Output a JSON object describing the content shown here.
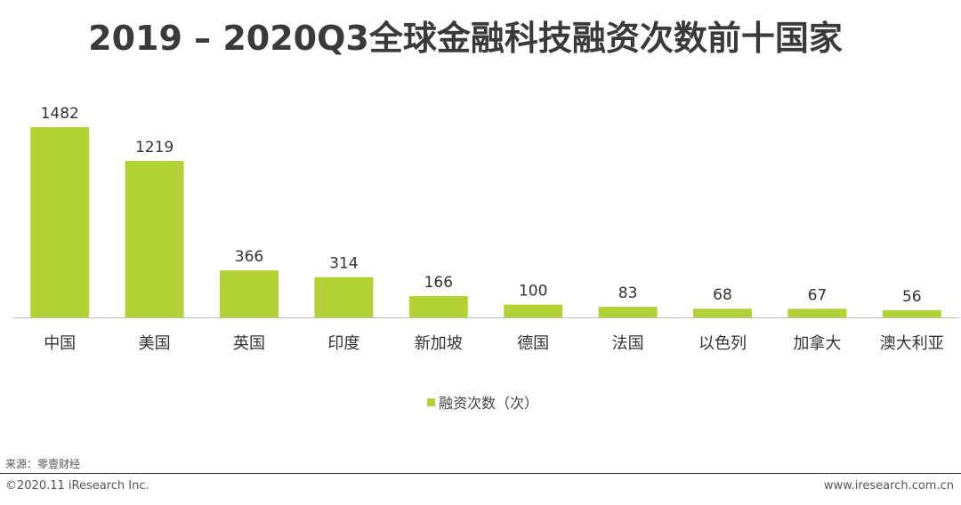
{
  "title": "2019 – 2020Q3全球金融科技融资次数前十国家",
  "chart_data": {
    "type": "bar",
    "categories": [
      "中国",
      "美国",
      "英国",
      "印度",
      "新加坡",
      "德国",
      "法国",
      "以色列",
      "加拿大",
      "澳大利亚"
    ],
    "series": [
      {
        "name": "融资次数（次）",
        "values": [
          1482,
          1219,
          366,
          314,
          166,
          100,
          83,
          68,
          67,
          56
        ],
        "color": "#b2d235"
      }
    ],
    "ylim": [
      0,
      1600
    ],
    "grid": false,
    "legend_position": "bottom-center"
  },
  "source": "来源：零壹财经",
  "copyright": "©2020.11 iResearch Inc.",
  "website": "www.iresearch.com.cn"
}
